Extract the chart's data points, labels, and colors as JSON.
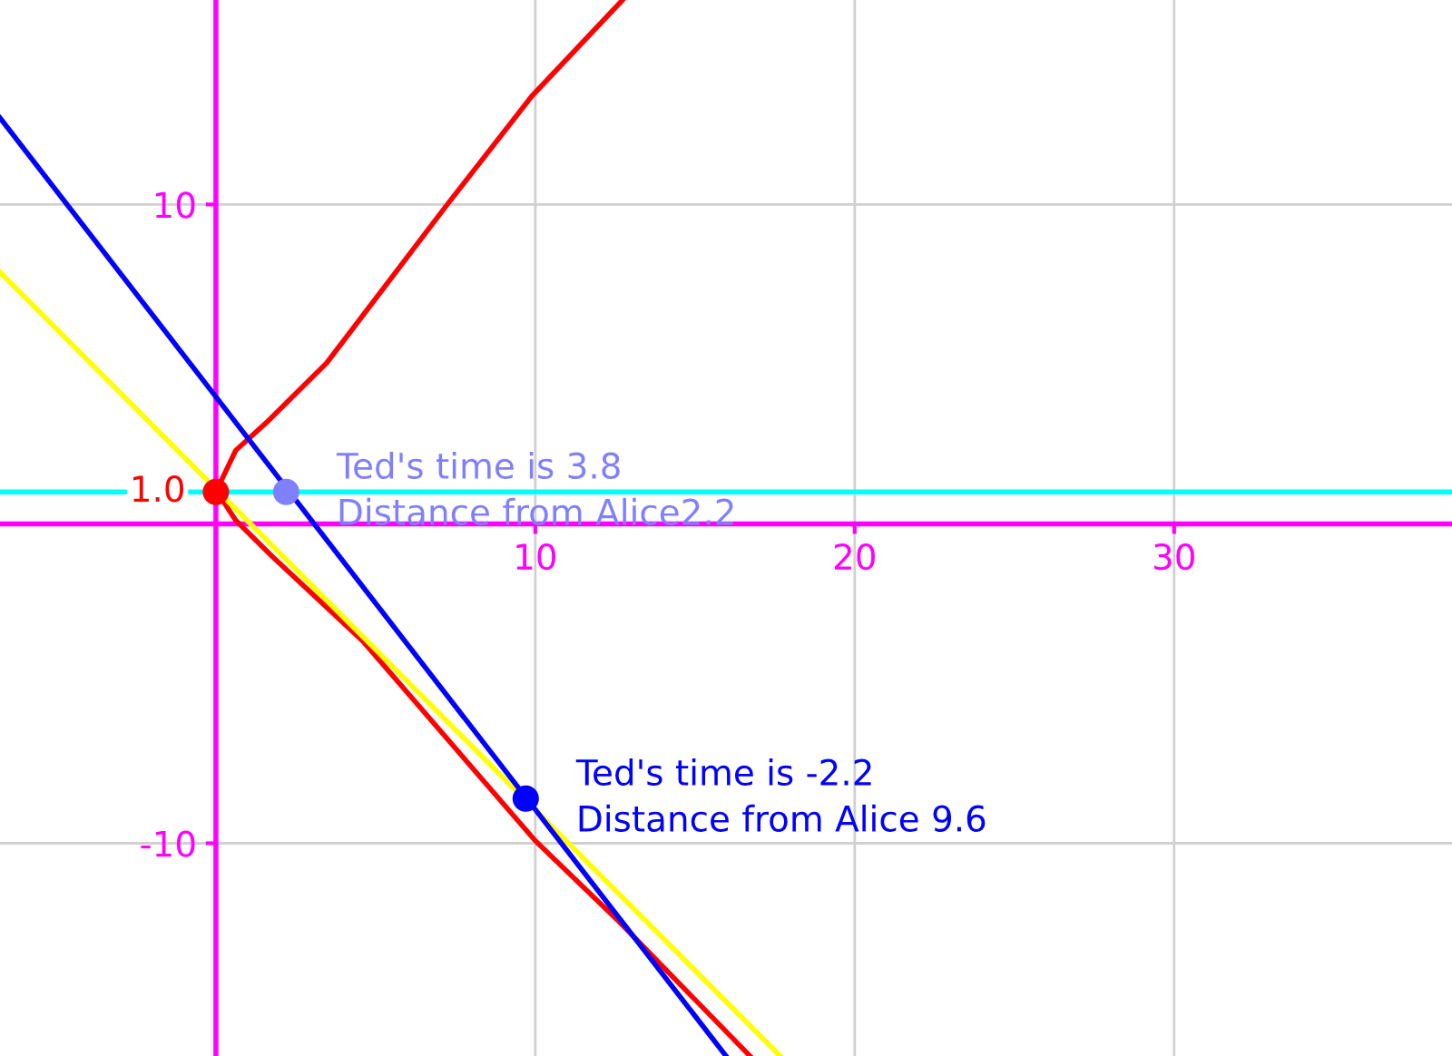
{
  "chart_data": {
    "type": "line",
    "xlim": [
      -6.76,
      38.7
    ],
    "ylim": [
      -16.66,
      16.4
    ],
    "xticks": [
      10,
      20,
      30
    ],
    "yticks": [
      -10,
      10
    ],
    "grid": true,
    "series": [
      {
        "color": "#ff0000",
        "x": [
          12.73,
          9.89,
          7.26,
          3.47,
          1.57,
          0.62,
          0,
          0.06,
          0.62,
          1.76,
          4.6,
          10,
          12.56,
          16.72
        ],
        "values": [
          16.4,
          13.39,
          10.02,
          5.04,
          3.16,
          2.3,
          1,
          0.97,
          0.11,
          -1.02,
          -3.67,
          -9.92,
          -12.39,
          -16.66
        ]
      },
      {
        "color": "#ffff00",
        "x": [
          -6.76,
          17.67
        ],
        "values": [
          7.88,
          -16.66
        ]
      },
      {
        "color": "#0000ff",
        "x": [
          -6.76,
          15.97
        ],
        "values": [
          12.71,
          -16.66
        ]
      },
      {
        "type": "scatter",
        "color": "#ff0000",
        "x": [
          0
        ],
        "values": [
          1
        ],
        "value_labels": [
          "1.0"
        ]
      },
      {
        "type": "scatter",
        "color": "#8080ff",
        "x": [
          2.2
        ],
        "values": [
          1
        ],
        "value_labels": [
          "Ted's time is 3.8\nDistance from Alice2.2"
        ]
      },
      {
        "type": "scatter",
        "color": "#0000ff",
        "x": [
          9.7
        ],
        "values": [
          -8.6
        ],
        "value_labels": [
          "Ted's time is -2.2\nDistance from Alice 9.6"
        ]
      }
    ],
    "ref_lines": [
      {
        "axis": "y",
        "value": 1,
        "color": "#00ffff"
      }
    ]
  }
}
